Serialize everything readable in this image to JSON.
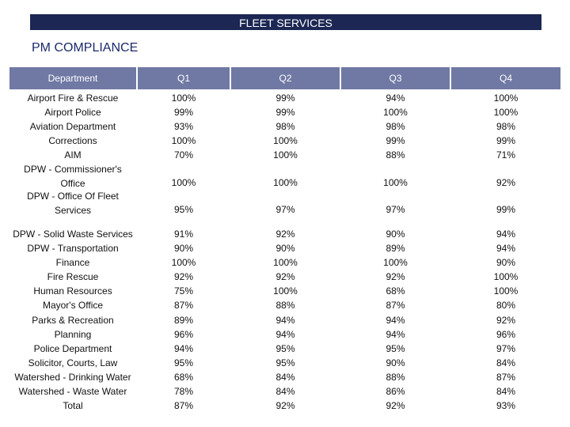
{
  "header": {
    "banner": "FLEET SERVICES",
    "subtitle": "PM COMPLIANCE"
  },
  "table": {
    "columns": [
      "Department",
      "Q1",
      "Q2",
      "Q3",
      "Q4"
    ],
    "group1": {
      "departments": [
        "Airport Fire & Rescue",
        "Airport Police",
        "Aviation Department",
        "Corrections",
        "AIM"
      ],
      "q1": [
        "100%",
        "99%",
        "93%",
        "100%",
        "70%"
      ],
      "q2": [
        "99%",
        "99%",
        "98%",
        "100%",
        "100%"
      ],
      "q3": [
        "94%",
        "100%",
        "98%",
        "99%",
        "88%"
      ],
      "q4": [
        "100%",
        "100%",
        "98%",
        "99%",
        "71%"
      ]
    },
    "commissioner": {
      "label_line1": "DPW - Commissioner's",
      "label_line2": "Office",
      "q1": "100%",
      "q2": "100%",
      "q3": "100%",
      "q4": "92%"
    },
    "fleet": {
      "label_line1": "DPW - Office Of Fleet",
      "label_line2": "Services",
      "q1": "95%",
      "q2": "97%",
      "q3": "97%",
      "q4": "99%"
    },
    "group2": {
      "departments": [
        "DPW - Solid Waste Services",
        "DPW - Transportation",
        "Finance",
        "Fire Rescue",
        "Human Resources",
        "Mayor's Office",
        "Parks & Recreation",
        "Planning",
        "Police Department",
        "Solicitor, Courts, Law",
        "Watershed - Drinking Water",
        "Watershed - Waste Water",
        "Total"
      ],
      "q1": [
        "91%",
        "90%",
        "100%",
        "92%",
        "75%",
        "87%",
        "89%",
        "96%",
        "94%",
        "95%",
        "68%",
        "78%",
        "87%"
      ],
      "q2": [
        "92%",
        "90%",
        "100%",
        "92%",
        "100%",
        "88%",
        "94%",
        "94%",
        "95%",
        "95%",
        "84%",
        "84%",
        "92%"
      ],
      "q3": [
        "90%",
        "89%",
        "100%",
        "92%",
        "68%",
        "87%",
        "94%",
        "94%",
        "95%",
        "90%",
        "88%",
        "86%",
        "92%"
      ],
      "q4": [
        "94%",
        "94%",
        "90%",
        "100%",
        "100%",
        "80%",
        "92%",
        "96%",
        "97%",
        "84%",
        "87%",
        "84%",
        "93%"
      ]
    }
  }
}
